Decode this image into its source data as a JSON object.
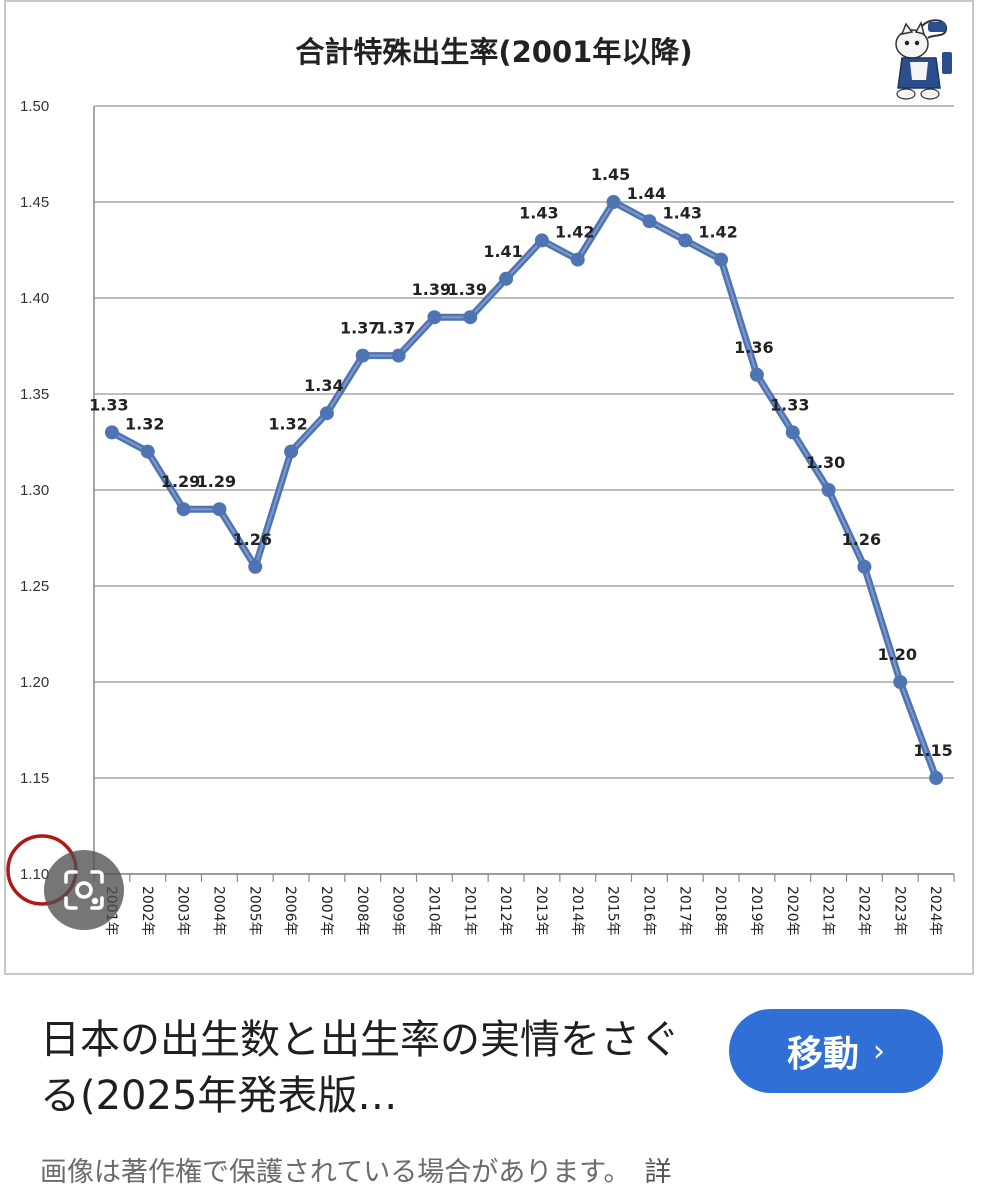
{
  "chart_data": {
    "type": "line",
    "title": "合計特殊出生率(2001年以降)",
    "categories": [
      "2001年",
      "2002年",
      "2003年",
      "2004年",
      "2005年",
      "2006年",
      "2007年",
      "2008年",
      "2009年",
      "2010年",
      "2011年",
      "2012年",
      "2013年",
      "2014年",
      "2015年",
      "2016年",
      "2017年",
      "2018年",
      "2019年",
      "2020年",
      "2021年",
      "2022年",
      "2023年",
      "2024年"
    ],
    "values": [
      1.33,
      1.32,
      1.29,
      1.29,
      1.26,
      1.32,
      1.34,
      1.37,
      1.37,
      1.39,
      1.39,
      1.41,
      1.43,
      1.42,
      1.45,
      1.44,
      1.43,
      1.42,
      1.36,
      1.33,
      1.3,
      1.26,
      1.2,
      1.15
    ],
    "value_labels": [
      "1.33",
      "1.32",
      "1.29",
      "1.29",
      "1.26",
      "1.32",
      "1.34",
      "1.37",
      "1.37",
      "1.39",
      "1.39",
      "1.41",
      "1.43",
      "1.42",
      "1.45",
      "1.44",
      "1.43",
      "1.42",
      "1.36",
      "1.33",
      "1.30",
      "1.26",
      "1.20",
      "1.15"
    ],
    "yticks": [
      "1.10",
      "1.15",
      "1.20",
      "1.25",
      "1.30",
      "1.35",
      "1.40",
      "1.45",
      "1.50"
    ],
    "ylim": [
      1.1,
      1.5
    ],
    "xlabel": "",
    "ylabel": "",
    "grid": "horizontal",
    "legend": "none",
    "line_color": "#4f74b3",
    "grid_color": "#a8a8a8"
  },
  "mascot": {
    "icon": "cartoon-cat-mascot-icon"
  },
  "lens": {
    "icon": "image-search-lens-icon",
    "ring_color": "#b01818"
  },
  "caption": {
    "title": "日本の出生数と出生率の実情をさぐる(2025年発表版…",
    "button_label": "移動",
    "button_chevron": "›",
    "button_color": "#2f6fd6",
    "note": "画像は著作権で保護されている場合があります。",
    "note_more": "詳"
  }
}
